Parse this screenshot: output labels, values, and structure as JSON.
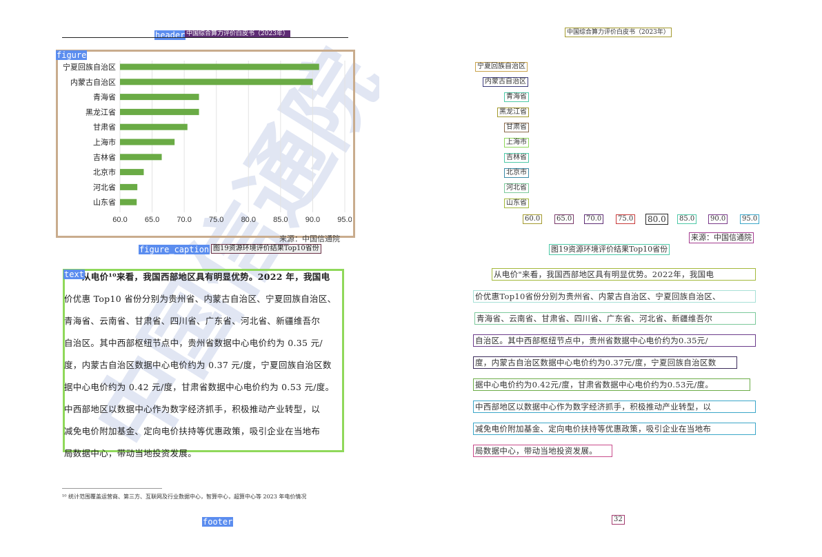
{
  "left_page": {
    "tags": {
      "header": "header",
      "figure": "figure",
      "figure_caption": "figure_caption",
      "text": "text",
      "footer": "footer"
    },
    "header_text": "中国综合算力评价白皮书（2023年）",
    "source_text": "来源：中国信通院",
    "caption_text": "图19资源环境评价结果Top10省份",
    "watermark": "中国信通院",
    "paragraph_lines": [
      "从电价¹⁰来看，我国西部地区具有明显优势。2022 年，我国电",
      "价优惠 Top10 省份分别为贵州省、内蒙古自治区、宁夏回族自治区、",
      "青海省、云南省、甘肃省、四川省、广东省、河北省、新疆维吾尔",
      "自治区。其中西部枢纽节点中，贵州省数据中心电价约为 0.35 元/",
      "度，内蒙古自治区数据中心电价约为 0.37 元/度，宁夏回族自治区数",
      "据中心电价约为 0.42 元/度，甘肃省数据中心电价约为 0.53 元/度。",
      "中西部地区以数据中心作为数字经济抓手，积极推动产业转型，以",
      "减免电价附加基金、定向电价扶持等优惠政策，吸引企业在当地布",
      "局数据中心，带动当地投资发展。"
    ],
    "footnote": "¹⁰ 统计范围覆盖运营商、第三方、互联网及行业数据中心，智算中心，超算中心等 2023 年电价情况"
  },
  "right_page": {
    "header_text": "中国综合算力评价白皮书（2023年）",
    "category_labels": [
      "宁夏回族自治区",
      "内蒙古自治区",
      "青海省",
      "黑龙江省",
      "甘肃省",
      "上海市",
      "吉林省",
      "北京市",
      "河北省",
      "山东省"
    ],
    "tick_labels": [
      "60.0",
      "65.0",
      "70.0",
      "75.0",
      "80.0",
      "85.0",
      "90.0",
      "95.0"
    ],
    "source_text": "来源：中国信通院",
    "caption_text": "图19资源环境评价结果Top10省份",
    "paragraph_lines": [
      "从电价\"来看，我国西部地区具有明显优势。2022年，我国电",
      "价优惠Top10省份分别为贵州省、内蒙古自治区、宁夏回族自治区、",
      "青海省、云南省、甘肃省、四川省、广东省、河北省、新疆维吾尔",
      "自治区。其中西部枢纽节点中，贵州省数据中心电价约为0.35元/",
      "度，内蒙古自治区数据中心电价约为0.37元/度，宁夏回族自治区数",
      "据中心电价约为0.42元/度，甘肃省数据中心电价约为0.53元/度。",
      "中西部地区以数据中心作为数字经济抓手，积极推动产业转型，以",
      "减免电价附加基金、定向电价扶持等优惠政策，吸引企业在当地布",
      "局数据中心，带动当地投资发展。"
    ],
    "page_number": "32"
  },
  "chart_data": {
    "type": "bar",
    "orientation": "horizontal",
    "categories": [
      "宁夏回族自治区",
      "内蒙古自治区",
      "青海省",
      "黑龙江省",
      "甘肃省",
      "上海市",
      "吉林省",
      "北京市",
      "河北省",
      "山东省"
    ],
    "values": [
      91.0,
      90.0,
      72.3,
      72.3,
      70.5,
      68.5,
      66.5,
      63.7,
      62.7,
      62.6
    ],
    "xlim": [
      60,
      95
    ],
    "ticks": [
      "60.0",
      "65.0",
      "70.0",
      "75.0",
      "80.0",
      "85.0",
      "90.0",
      "95.0"
    ],
    "grid": true,
    "bar_color": "#6aab45"
  },
  "colors": {
    "figure_border": "#c9ac8d",
    "text_border": "#8fd85a",
    "tag_bg": "#5b8def",
    "bar": "#6aab45"
  }
}
